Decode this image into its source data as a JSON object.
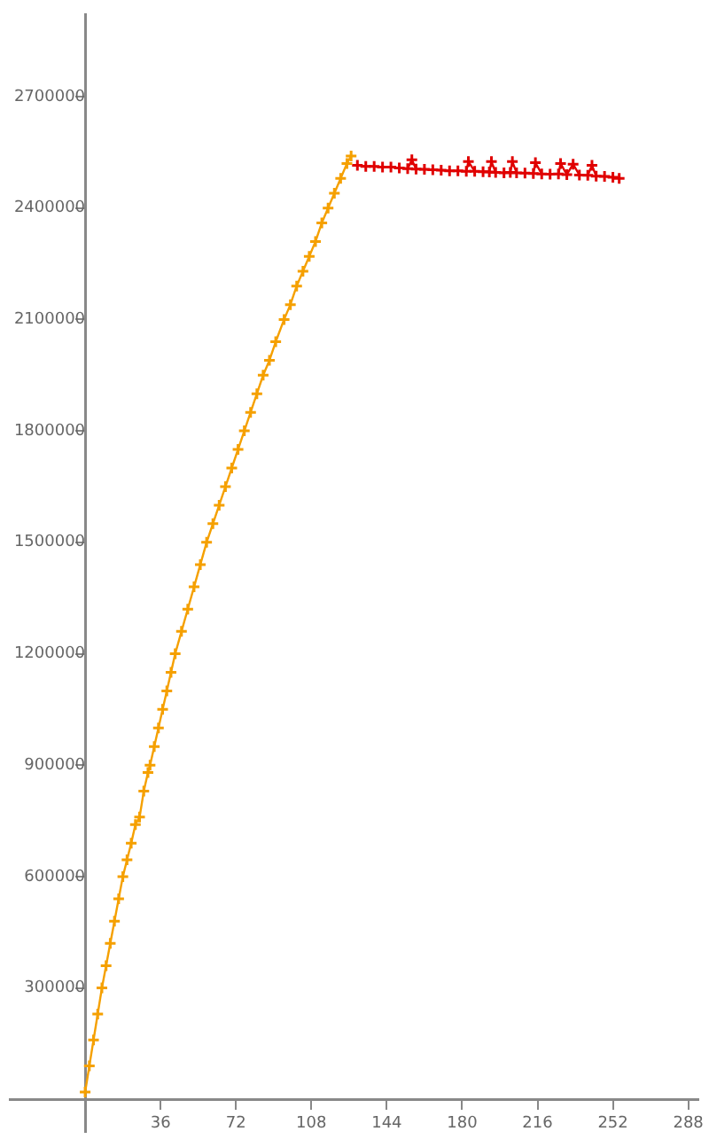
{
  "chart_data": {
    "type": "line",
    "marker": "cross",
    "xlim": [
      -36,
      293
    ],
    "ylim": [
      -88000,
      2920000
    ],
    "xticks": [
      36,
      72,
      108,
      144,
      180,
      216,
      252,
      288
    ],
    "yticks": [
      300000,
      600000,
      900000,
      1200000,
      1500000,
      1800000,
      2100000,
      2400000,
      2700000
    ],
    "series": [
      {
        "color": "#f5a000",
        "x": [
          0,
          2,
          4,
          6,
          8,
          10,
          12,
          14,
          16,
          18,
          20,
          22,
          24,
          26,
          28,
          30,
          31,
          33,
          35,
          37,
          39,
          41,
          43,
          46,
          49,
          52,
          55,
          58,
          61,
          64,
          67,
          70,
          73,
          76,
          79,
          82,
          85,
          88,
          91,
          95,
          98,
          101,
          104,
          107,
          110,
          113,
          116,
          119,
          122,
          125,
          127
        ],
        "values": [
          20000,
          90000,
          160000,
          230000,
          300000,
          360000,
          420000,
          480000,
          540000,
          600000,
          645000,
          690000,
          740000,
          760000,
          830000,
          880000,
          900000,
          950000,
          1000000,
          1050000,
          1100000,
          1150000,
          1200000,
          1260000,
          1320000,
          1380000,
          1440000,
          1500000,
          1550000,
          1600000,
          1650000,
          1700000,
          1750000,
          1800000,
          1850000,
          1900000,
          1950000,
          1990000,
          2040000,
          2100000,
          2140000,
          2190000,
          2230000,
          2270000,
          2310000,
          2360000,
          2400000,
          2440000,
          2480000,
          2520000,
          2540000
        ]
      },
      {
        "color": "#e00000",
        "x": [
          130,
          134,
          138,
          142,
          146,
          150,
          154,
          156,
          158,
          162,
          166,
          170,
          174,
          178,
          182,
          183,
          186,
          190,
          193,
          194,
          196,
          200,
          203,
          204,
          206,
          210,
          214,
          215,
          218,
          222,
          226,
          227,
          230,
          233,
          236,
          240,
          242,
          244,
          248,
          252,
          255
        ],
        "values": [
          2515000,
          2512000,
          2512000,
          2510000,
          2510000,
          2508000,
          2506000,
          2530000,
          2505000,
          2504000,
          2503000,
          2502000,
          2500000,
          2500000,
          2499000,
          2525000,
          2499000,
          2498000,
          2497000,
          2525000,
          2496000,
          2495000,
          2496000,
          2525000,
          2495000,
          2494000,
          2493000,
          2522000,
          2492000,
          2491000,
          2492000,
          2520000,
          2490000,
          2518000,
          2489000,
          2488000,
          2515000,
          2486000,
          2485000,
          2483000,
          2480000
        ]
      }
    ]
  }
}
